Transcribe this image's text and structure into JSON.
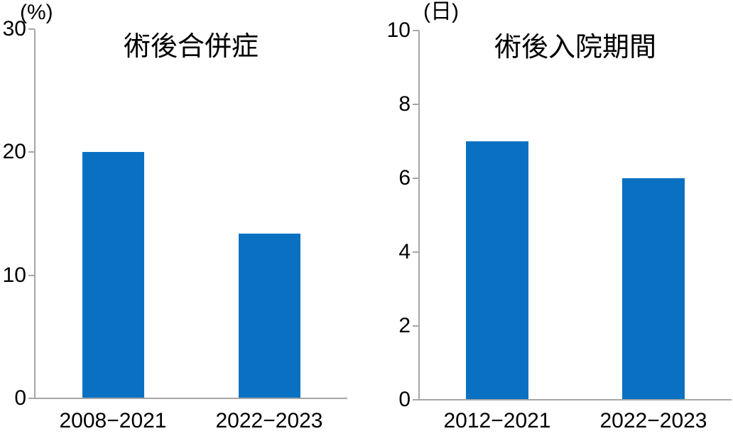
{
  "figure": {
    "description_visible_text_only": true
  },
  "chart_data": [
    {
      "type": "bar",
      "title": "術後合併症",
      "y_unit": "(%)",
      "categories": [
        "2008−2021",
        "2022−2023"
      ],
      "values": [
        20,
        13.4
      ],
      "ylim": [
        0,
        30
      ],
      "ytick_step": 10,
      "ytick_labels": [
        "0",
        "10",
        "20",
        "30"
      ],
      "xlabel": "",
      "ylabel": "(%)",
      "grid": false,
      "legend": false,
      "bar_color": "#0a71c2",
      "axis_color": "#a6a6a6",
      "text_color": "#000000"
    },
    {
      "type": "bar",
      "title": "術後入院期間",
      "y_unit": "(日)",
      "categories": [
        "2012−2021",
        "2022−2023"
      ],
      "values": [
        7,
        6
      ],
      "ylim": [
        0,
        10
      ],
      "ytick_step": 2,
      "ytick_labels": [
        "0",
        "2",
        "4",
        "6",
        "8",
        "10"
      ],
      "xlabel": "",
      "ylabel": "(日)",
      "grid": false,
      "legend": false,
      "bar_color": "#0a71c2",
      "axis_color": "#a6a6a6",
      "text_color": "#000000"
    }
  ]
}
